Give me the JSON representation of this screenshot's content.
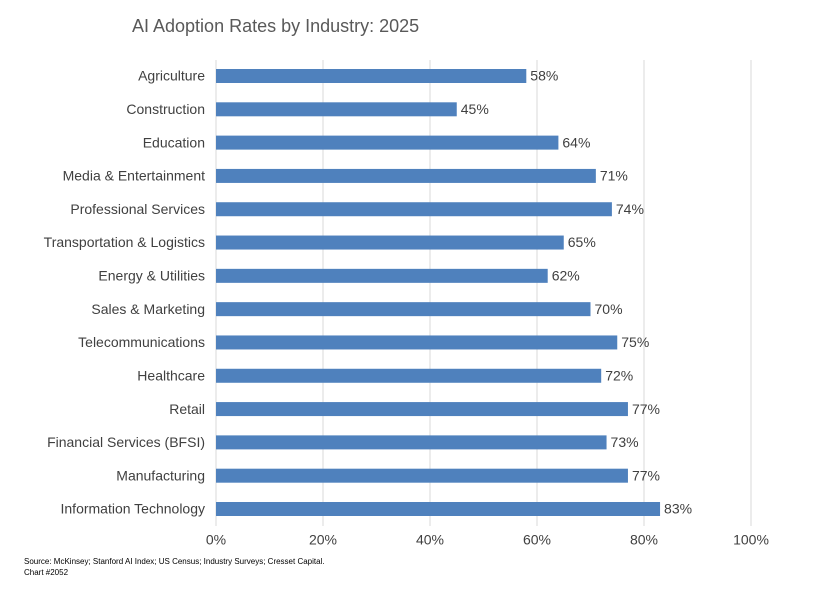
{
  "chart_data": {
    "type": "bar",
    "orientation": "horizontal",
    "title": "AI Adoption Rates by Industry: 2025",
    "categories": [
      "Agriculture",
      "Construction",
      "Education",
      "Media & Entertainment",
      "Professional Services",
      "Transportation & Logistics",
      "Energy & Utilities",
      "Sales & Marketing",
      "Telecommunications",
      "Healthcare",
      "Retail",
      "Financial Services (BFSI)",
      "Manufacturing",
      "Information Technology"
    ],
    "values": [
      58,
      45,
      64,
      71,
      74,
      65,
      62,
      70,
      75,
      72,
      77,
      73,
      77,
      83
    ],
    "value_labels": [
      "58%",
      "45%",
      "64%",
      "71%",
      "74%",
      "65%",
      "62%",
      "70%",
      "75%",
      "72%",
      "77%",
      "73%",
      "77%",
      "83%"
    ],
    "color": "#4f81bd",
    "xlim": [
      0,
      100
    ],
    "xticks": [
      {
        "value": 0,
        "label": "0%"
      },
      {
        "value": 20,
        "label": "20%"
      },
      {
        "value": 40,
        "label": "40%"
      },
      {
        "value": 60,
        "label": "60%"
      },
      {
        "value": 80,
        "label": "80%"
      },
      {
        "value": 100,
        "label": "100%"
      }
    ],
    "grid": true,
    "source": "Source: McKinsey; Stanford AI Index; US Census; Industry Surveys; Cresset Capital.",
    "chart_id": "Chart #2052"
  }
}
